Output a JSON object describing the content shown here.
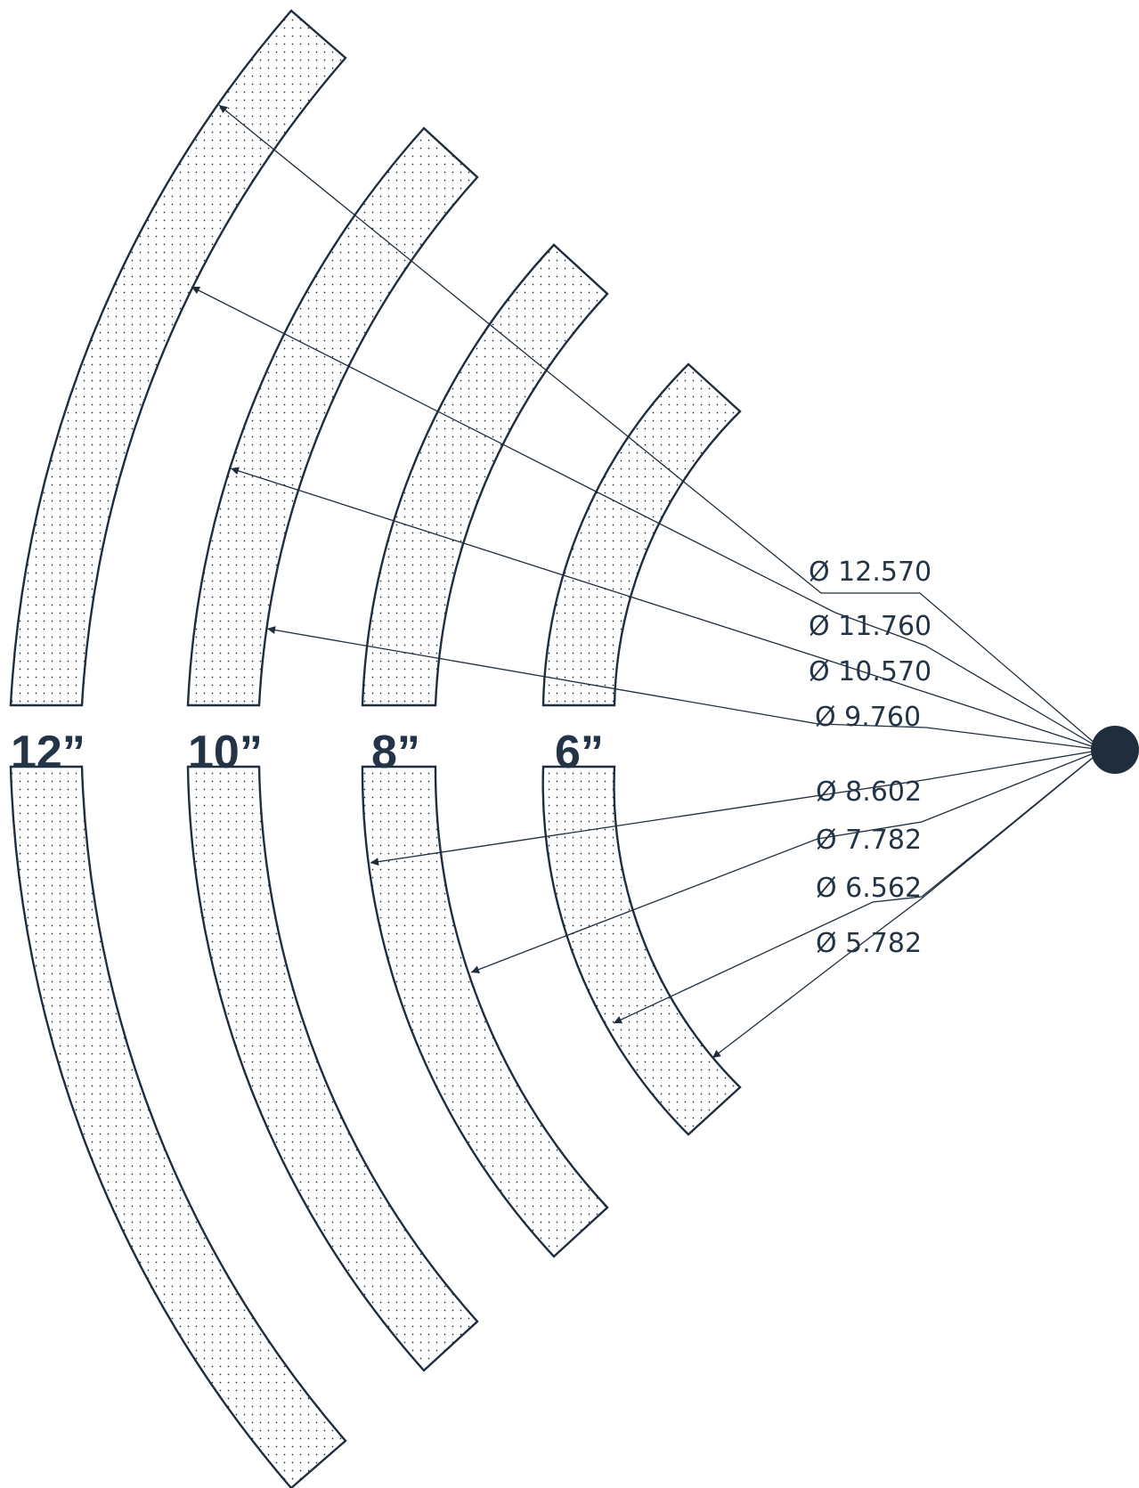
{
  "diagram": {
    "colors": {
      "ink": "#1f2d3d",
      "text": "#243447",
      "dot": "#1f2d3d",
      "background": "#ffffff"
    },
    "rings": [
      {
        "size_label": "12”",
        "outer_dim": "Ø 12.570",
        "inner_dim": "Ø 11.760"
      },
      {
        "size_label": "10”",
        "outer_dim": "Ø 10.570",
        "inner_dim": "Ø 9.760"
      },
      {
        "size_label": "8”",
        "outer_dim": "Ø 8.602",
        "inner_dim": "Ø 7.782"
      },
      {
        "size_label": "6”",
        "outer_dim": "Ø 6.562",
        "inner_dim": "Ø 5.782"
      }
    ],
    "hub_icon": "filled-circle"
  }
}
